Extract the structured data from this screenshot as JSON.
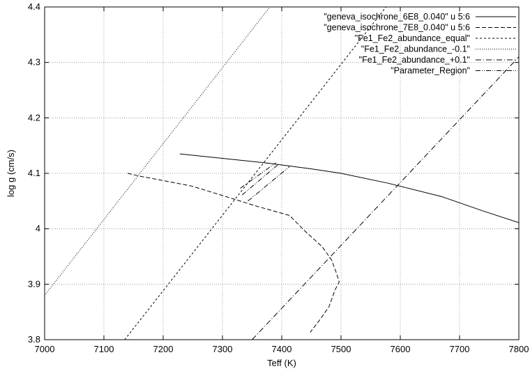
{
  "chart_data": {
    "type": "line",
    "xlabel": "Teff (K)",
    "ylabel": "log g (cm/s)",
    "xlim": [
      7000,
      7800
    ],
    "ylim": [
      3.8,
      4.4
    ],
    "xticks": [
      7000,
      7100,
      7200,
      7300,
      7400,
      7500,
      7600,
      7700,
      7800
    ],
    "xtick_labels": [
      "7000",
      "7100",
      "7200",
      "7300",
      "7400",
      "7500",
      "7600",
      "7700",
      "7800"
    ],
    "yticks": [
      3.8,
      3.9,
      4.0,
      4.1,
      4.2,
      4.3,
      4.4
    ],
    "ytick_labels": [
      "3.8",
      "3.9",
      "4",
      "4.1",
      "4.2",
      "4.3",
      "4.4"
    ],
    "grid": true,
    "legend_position": "top-right",
    "series": [
      {
        "name": "\"geneva_isochrone_6E8_0.040\" u 5:6",
        "style": "solid",
        "points": [
          [
            7228,
            4.135
          ],
          [
            7300,
            4.127
          ],
          [
            7380,
            4.118
          ],
          [
            7450,
            4.108
          ],
          [
            7500,
            4.1
          ],
          [
            7580,
            4.082
          ],
          [
            7670,
            4.058
          ],
          [
            7740,
            4.032
          ],
          [
            7800,
            4.011
          ]
        ]
      },
      {
        "name": "\"geneva_isochrone_7E8_0.040\" u 5:6",
        "style": "dashed",
        "points": [
          [
            7140,
            4.1
          ],
          [
            7160,
            4.095
          ],
          [
            7200,
            4.087
          ],
          [
            7248,
            4.077
          ],
          [
            7300,
            4.06
          ],
          [
            7360,
            4.04
          ],
          [
            7413,
            4.024
          ],
          [
            7440,
            3.995
          ],
          [
            7468,
            3.968
          ],
          [
            7484,
            3.944
          ],
          [
            7492,
            3.921
          ],
          [
            7497,
            3.904
          ],
          [
            7490,
            3.89
          ],
          [
            7480,
            3.86
          ],
          [
            7465,
            3.837
          ],
          [
            7448,
            3.813
          ]
        ]
      },
      {
        "name": "\"Fe1_Fe2_abundance_equal\"",
        "style": "short-dash",
        "points": [
          [
            7135,
            3.8
          ],
          [
            7576,
            4.4
          ]
        ]
      },
      {
        "name": "\"Fe1_Fe2_abundance_-0.1\"",
        "style": "dotted",
        "points": [
          [
            7000,
            3.88
          ],
          [
            7380,
            4.4
          ]
        ]
      },
      {
        "name": "\"Fe1_Fe2_abundance_+0.1\"",
        "style": "dash-dot",
        "points": [
          [
            7350,
            3.8
          ],
          [
            7800,
            4.31
          ]
        ]
      },
      {
        "name": "\"Parameter_Region\"",
        "style": "dash-dot-dot",
        "segments": [
          [
            [
              7333,
              4.061
            ],
            [
              7393,
              4.115
            ]
          ],
          [
            [
              7343,
              4.05
            ],
            [
              7413,
              4.112
            ]
          ],
          [
            [
              7330,
              4.073
            ],
            [
              7390,
              4.119
            ]
          ]
        ]
      }
    ]
  }
}
